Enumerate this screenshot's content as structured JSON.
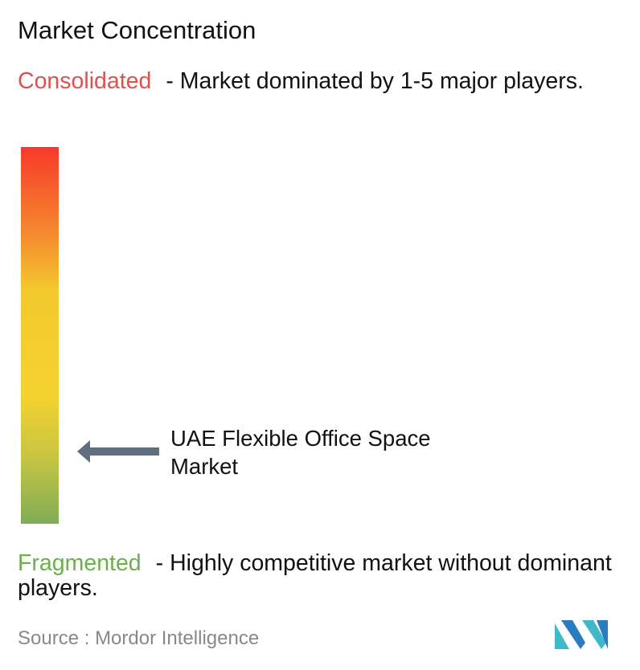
{
  "title": "Market Concentration",
  "consolidated": {
    "label": "Consolidated",
    "description": "- Market dominated by 1-5 major players."
  },
  "fragmented": {
    "label": "Fragmented",
    "description": "- Highly competitive market without dominant players."
  },
  "market": {
    "label": "UAE Flexible Office Space Market"
  },
  "source": {
    "label": "Source :",
    "name": "Mordor Intelligence"
  }
}
